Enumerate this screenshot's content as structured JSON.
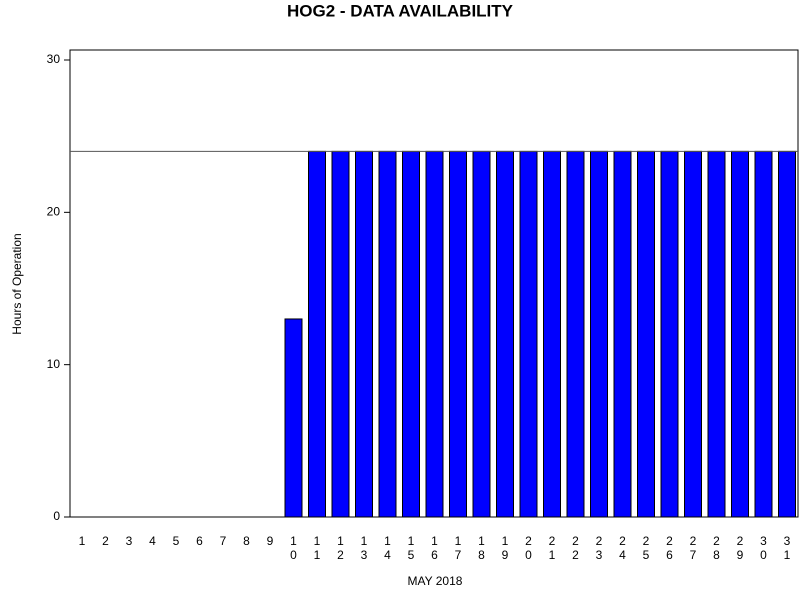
{
  "chart_data": {
    "type": "bar",
    "title": "HOG2 - DATA AVAILABILITY",
    "y_label": "Hours of Operation",
    "x_label": "MAY 2018",
    "categories": [
      "1",
      "2",
      "3",
      "4",
      "5",
      "6",
      "7",
      "8",
      "9",
      "10",
      "11",
      "12",
      "13",
      "14",
      "15",
      "16",
      "17",
      "18",
      "19",
      "20",
      "21",
      "22",
      "23",
      "24",
      "25",
      "26",
      "27",
      "28",
      "29",
      "30",
      "31"
    ],
    "values": [
      0,
      0,
      0,
      0,
      0,
      0,
      0,
      0,
      0,
      13,
      24,
      24,
      24,
      24,
      24,
      24,
      24,
      24,
      24,
      24,
      24,
      24,
      24,
      24,
      24,
      24,
      24,
      24,
      24,
      24,
      24
    ],
    "color": "#0000ff",
    "ylim": [
      0,
      30
    ],
    "yticks": [
      0,
      10,
      20,
      30
    ],
    "reference_line": 24
  }
}
